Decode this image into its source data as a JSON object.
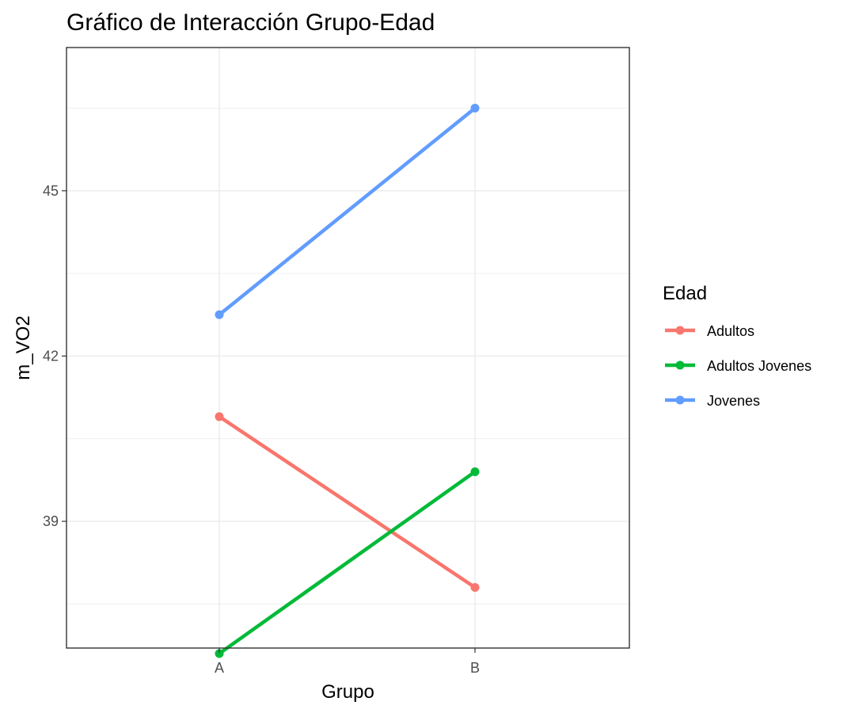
{
  "chart_data": {
    "type": "line",
    "title": "Gráfico de Interacción Grupo-Edad",
    "xlabel": "Grupo",
    "ylabel": "m_VO2",
    "categories": [
      "A",
      "B"
    ],
    "yticks": [
      39,
      42,
      45
    ],
    "ylim": [
      36.7,
      47.6
    ],
    "grid": true,
    "legend": {
      "title": "Edad",
      "placement": "right"
    },
    "series": [
      {
        "name": "Adultos",
        "color": "#f8766d",
        "values": [
          40.9,
          37.8
        ]
      },
      {
        "name": "Adultos Jovenes",
        "color": "#00ba38",
        "values": [
          36.6,
          39.9
        ]
      },
      {
        "name": "Jovenes",
        "color": "#619cff",
        "values": [
          42.75,
          46.5
        ]
      }
    ]
  }
}
